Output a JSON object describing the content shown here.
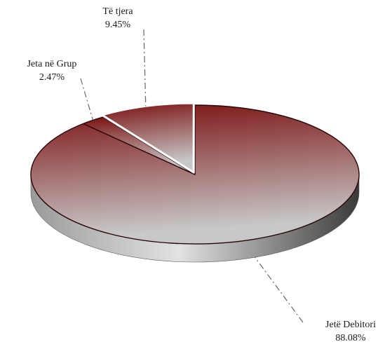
{
  "chart_data": {
    "type": "pie",
    "style": "3d",
    "categories": [
      "Jetë Debitori",
      "Jeta në Grup",
      "Të tjera"
    ],
    "values": [
      88.08,
      2.47,
      9.45
    ],
    "value_labels": [
      "88.08%",
      "2.47%",
      "9.45%"
    ],
    "unit": "%",
    "legend": "none",
    "exploded_slice": "Të tjera",
    "colors": {
      "gradient_dark": "#7a0f0f",
      "gradient_light": "#c8c8c8",
      "separator": "#ffffff",
      "leader_line": "#666666"
    }
  }
}
